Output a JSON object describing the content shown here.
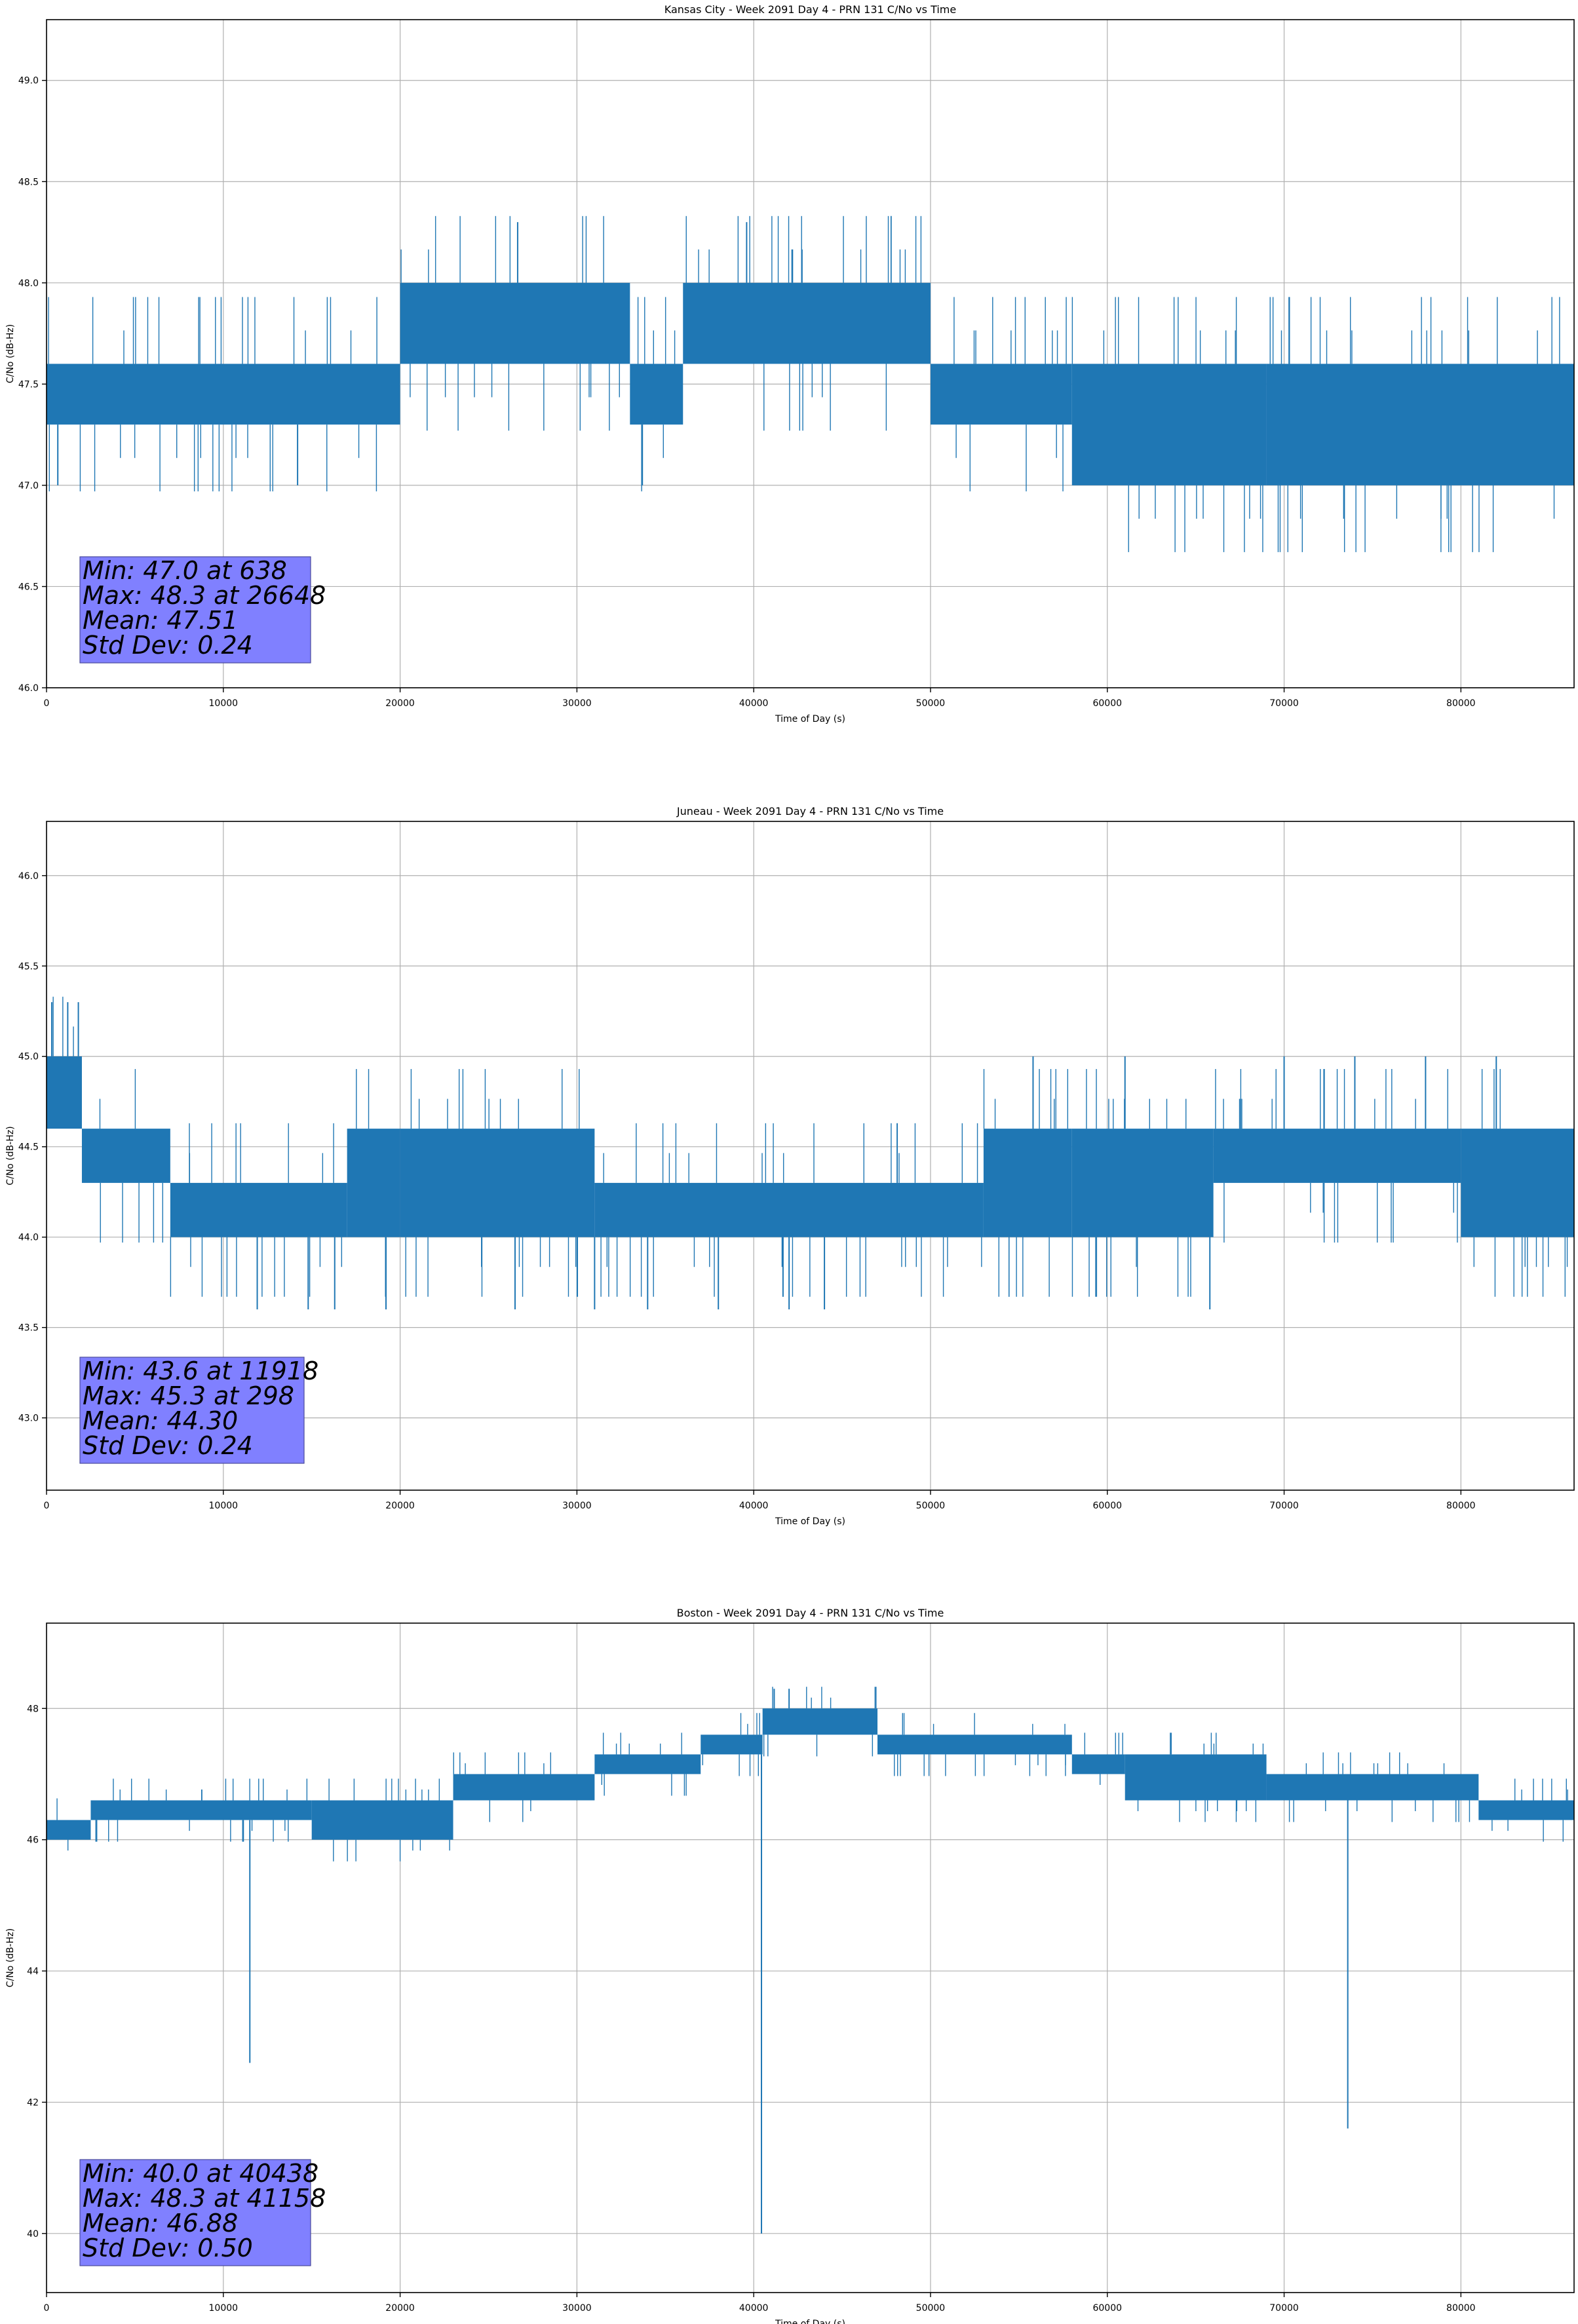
{
  "colors": {
    "series": "#1f77b4",
    "stats_box": "#8080ff",
    "grid": "#b0b0b0",
    "axis": "#000000"
  },
  "chart_data": [
    {
      "type": "line",
      "title": "Kansas City - Week 2091 Day 4 - PRN 131 C/No vs Time",
      "xlabel": "Time of Day (s)",
      "ylabel": "C/No (dB-Hz)",
      "xlim": [
        0,
        86400
      ],
      "ylim": [
        46.0,
        49.3
      ],
      "xticks": [
        0,
        10000,
        20000,
        30000,
        40000,
        50000,
        60000,
        70000,
        80000
      ],
      "yticks": [
        46.0,
        46.5,
        47.0,
        47.5,
        48.0,
        48.5,
        49.0
      ],
      "ytick_labels": [
        "46.0",
        "46.5",
        "47.0",
        "47.5",
        "48.0",
        "48.5",
        "49.0"
      ],
      "grid": true,
      "stats": [
        "Min: 47.0 at 638",
        "Max: 48.3 at 26648",
        "Mean: 47.51",
        "Std Dev: 0.24"
      ],
      "bands": [
        {
          "x": [
            0,
            20000
          ],
          "y": [
            47.3,
            47.6
          ]
        },
        {
          "x": [
            20000,
            33000
          ],
          "y": [
            47.6,
            48.0
          ]
        },
        {
          "x": [
            33000,
            36000
          ],
          "y": [
            47.3,
            47.6
          ]
        },
        {
          "x": [
            36000,
            50000
          ],
          "y": [
            47.6,
            48.0
          ]
        },
        {
          "x": [
            50000,
            58000
          ],
          "y": [
            47.3,
            47.6
          ]
        },
        {
          "x": [
            58000,
            69000
          ],
          "y": [
            47.0,
            47.6
          ]
        },
        {
          "x": [
            69000,
            86400
          ],
          "y": [
            47.0,
            47.6
          ]
        }
      ],
      "spikes": [
        [
          638,
          47.0
        ],
        [
          14200,
          47.0
        ],
        [
          26648,
          48.3
        ],
        [
          33700,
          47.0
        ],
        [
          39600,
          48.3
        ],
        [
          58000,
          47.0
        ],
        [
          62000,
          47.0
        ],
        [
          66000,
          47.0
        ],
        [
          70000,
          47.0
        ],
        [
          78000,
          47.0
        ],
        [
          85000,
          47.0
        ]
      ]
    },
    {
      "type": "line",
      "title": "Juneau - Week 2091 Day 4 - PRN 131 C/No vs Time",
      "xlabel": "Time of Day (s)",
      "ylabel": "C/No (dB-Hz)",
      "xlim": [
        0,
        86400
      ],
      "ylim": [
        42.6,
        46.3
      ],
      "xticks": [
        0,
        10000,
        20000,
        30000,
        40000,
        50000,
        60000,
        70000,
        80000
      ],
      "yticks": [
        43.0,
        43.5,
        44.0,
        44.5,
        45.0,
        45.5,
        46.0
      ],
      "ytick_labels": [
        "43.0",
        "43.5",
        "44.0",
        "44.5",
        "45.0",
        "45.5",
        "46.0"
      ],
      "grid": true,
      "stats": [
        "Min: 43.6 at 11918",
        "Max: 45.3 at 298",
        "Mean: 44.30",
        "Std Dev: 0.24"
      ],
      "bands": [
        {
          "x": [
            0,
            2000
          ],
          "y": [
            44.6,
            45.0
          ]
        },
        {
          "x": [
            2000,
            7000
          ],
          "y": [
            44.3,
            44.6
          ]
        },
        {
          "x": [
            7000,
            17000
          ],
          "y": [
            44.0,
            44.3
          ]
        },
        {
          "x": [
            17000,
            20000
          ],
          "y": [
            44.0,
            44.6
          ]
        },
        {
          "x": [
            20000,
            31000
          ],
          "y": [
            44.0,
            44.6
          ]
        },
        {
          "x": [
            31000,
            53000
          ],
          "y": [
            44.0,
            44.3
          ]
        },
        {
          "x": [
            53000,
            58000
          ],
          "y": [
            44.0,
            44.6
          ]
        },
        {
          "x": [
            58000,
            66000
          ],
          "y": [
            44.0,
            44.6
          ]
        },
        {
          "x": [
            66000,
            80000
          ],
          "y": [
            44.3,
            44.6
          ]
        },
        {
          "x": [
            80000,
            86400
          ],
          "y": [
            44.0,
            44.6
          ]
        }
      ],
      "spikes": [
        [
          298,
          45.3
        ],
        [
          1200,
          45.3
        ],
        [
          1800,
          45.3
        ],
        [
          11918,
          43.6
        ],
        [
          14800,
          43.6
        ],
        [
          16300,
          43.6
        ],
        [
          19200,
          43.6
        ],
        [
          26500,
          43.6
        ],
        [
          31000,
          43.6
        ],
        [
          34000,
          43.6
        ],
        [
          38000,
          43.6
        ],
        [
          42000,
          43.6
        ],
        [
          44000,
          43.6
        ],
        [
          55800,
          45.0
        ],
        [
          61000,
          45.0
        ],
        [
          65800,
          43.6
        ],
        [
          70000,
          45.0
        ],
        [
          74000,
          45.0
        ],
        [
          78000,
          45.0
        ],
        [
          82000,
          45.0
        ]
      ]
    },
    {
      "type": "line",
      "title": "Boston - Week 2091 Day 4 - PRN 131 C/No vs Time",
      "xlabel": "Time of Day (s)",
      "ylabel": "C/No (dB-Hz)",
      "xlim": [
        0,
        86400
      ],
      "ylim": [
        39.1,
        49.3
      ],
      "xticks": [
        0,
        10000,
        20000,
        30000,
        40000,
        50000,
        60000,
        70000,
        80000
      ],
      "yticks": [
        40,
        42,
        44,
        46,
        48
      ],
      "ytick_labels": [
        "40",
        "42",
        "44",
        "46",
        "48"
      ],
      "grid": true,
      "stats": [
        "Min: 40.0 at 40438",
        "Max: 48.3 at 41158",
        "Mean: 46.88",
        "Std Dev: 0.50"
      ],
      "bands": [
        {
          "x": [
            0,
            2500
          ],
          "y": [
            46.0,
            46.3
          ]
        },
        {
          "x": [
            2500,
            15000
          ],
          "y": [
            46.3,
            46.6
          ]
        },
        {
          "x": [
            15000,
            23000
          ],
          "y": [
            46.0,
            46.6
          ]
        },
        {
          "x": [
            23000,
            31000
          ],
          "y": [
            46.6,
            47.0
          ]
        },
        {
          "x": [
            31000,
            37000
          ],
          "y": [
            47.0,
            47.3
          ]
        },
        {
          "x": [
            37000,
            40500
          ],
          "y": [
            47.3,
            47.6
          ]
        },
        {
          "x": [
            40500,
            47000
          ],
          "y": [
            47.6,
            48.0
          ]
        },
        {
          "x": [
            47000,
            58000
          ],
          "y": [
            47.3,
            47.6
          ]
        },
        {
          "x": [
            58000,
            61000
          ],
          "y": [
            47.0,
            47.3
          ]
        },
        {
          "x": [
            61000,
            69000
          ],
          "y": [
            46.6,
            47.3
          ]
        },
        {
          "x": [
            69000,
            81000
          ],
          "y": [
            46.6,
            47.0
          ]
        },
        {
          "x": [
            81000,
            86400
          ],
          "y": [
            46.3,
            46.6
          ]
        }
      ],
      "spikes": [
        [
          11500,
          42.6
        ],
        [
          40438,
          40.0
        ],
        [
          41158,
          48.3
        ],
        [
          42000,
          48.3
        ],
        [
          73600,
          41.6
        ]
      ]
    }
  ]
}
